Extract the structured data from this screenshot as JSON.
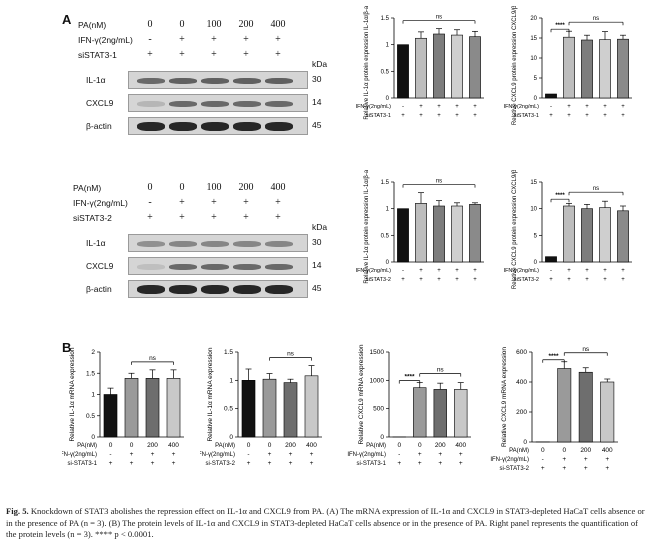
{
  "panel_a_letter": "A",
  "panel_b_letter": "B",
  "blots": [
    {
      "conditions": [
        {
          "label": "PA(nM)",
          "values": [
            "0",
            "0",
            "100",
            "200",
            "400"
          ]
        },
        {
          "label": "IFN-γ(2ng/mL)",
          "values": [
            "-",
            "+",
            "+",
            "+",
            "+"
          ]
        },
        {
          "label": "siSTAT3-1",
          "values": [
            "+",
            "+",
            "+",
            "+",
            "+"
          ]
        }
      ],
      "kda_label": "kDa",
      "bands": [
        {
          "name": "IL-1α",
          "kda": "30",
          "intensity": [
            0.55,
            0.6,
            0.6,
            0.6,
            0.6
          ]
        },
        {
          "name": "CXCL9",
          "kda": "14",
          "intensity": [
            0.15,
            0.55,
            0.55,
            0.55,
            0.55
          ]
        },
        {
          "name": "β-actin",
          "kda": "45",
          "intensity": [
            0.9,
            0.9,
            0.9,
            0.9,
            0.9
          ]
        }
      ]
    },
    {
      "conditions": [
        {
          "label": "PA(nM)",
          "values": [
            "0",
            "0",
            "100",
            "200",
            "400"
          ]
        },
        {
          "label": "IFN-γ(2ng/mL)",
          "values": [
            "-",
            "+",
            "+",
            "+",
            "+"
          ]
        },
        {
          "label": "siSTAT3-2",
          "values": [
            "+",
            "+",
            "+",
            "+",
            "+"
          ]
        }
      ],
      "kda_label": "kDa",
      "bands": [
        {
          "name": "IL-1α",
          "kda": "30",
          "intensity": [
            0.35,
            0.4,
            0.4,
            0.4,
            0.4
          ]
        },
        {
          "name": "CXCL9",
          "kda": "14",
          "intensity": [
            0.1,
            0.55,
            0.55,
            0.55,
            0.55
          ]
        },
        {
          "name": "β-actin",
          "kda": "45",
          "intensity": [
            0.9,
            0.9,
            0.9,
            0.9,
            0.9
          ]
        }
      ]
    }
  ],
  "chart_data": [
    {
      "id": "a1",
      "type": "bar",
      "ylabel": "Relative IL-1α protein expression IL-1α/β-actin",
      "ylim": [
        0,
        1.5
      ],
      "yticks": [
        0.0,
        0.5,
        1.0,
        1.5
      ],
      "values": [
        1.0,
        1.12,
        1.2,
        1.18,
        1.15
      ],
      "errors": [
        0,
        0.12,
        0.1,
        0.1,
        0.1
      ],
      "colors": [
        "#111111",
        "#bdbdbd",
        "#7d7d7d",
        "#cfcfcf",
        "#8a8a8a"
      ],
      "condition_rows": [
        {
          "label": "IFN-γ(2ng/mL)",
          "values": [
            "-",
            "+",
            "+",
            "+",
            "+"
          ]
        },
        {
          "label": "siSTAT3-1",
          "values": [
            "+",
            "+",
            "+",
            "+",
            "+"
          ]
        }
      ],
      "annotations": [
        {
          "from": 0,
          "to": 4,
          "text": "ns"
        }
      ]
    },
    {
      "id": "a2",
      "type": "bar",
      "ylabel": "Relative CXCL9 protein expression CXCL9/β-actin",
      "ylim": [
        0,
        20
      ],
      "yticks": [
        0,
        5,
        10,
        15,
        20
      ],
      "values": [
        1.0,
        15.2,
        14.5,
        14.6,
        14.7
      ],
      "errors": [
        0,
        1.5,
        1.2,
        2.0,
        1.0
      ],
      "colors": [
        "#111111",
        "#bdbdbd",
        "#7d7d7d",
        "#cfcfcf",
        "#8a8a8a"
      ],
      "condition_rows": [
        {
          "label": "IFN-γ(2ng/mL)",
          "values": [
            "-",
            "+",
            "+",
            "+",
            "+"
          ]
        },
        {
          "label": "siSTAT3-1",
          "values": [
            "+",
            "+",
            "+",
            "+",
            "+"
          ]
        }
      ],
      "annotations": [
        {
          "from": 0,
          "to": 1,
          "text": "****"
        },
        {
          "from": 1,
          "to": 4,
          "text": "ns"
        }
      ]
    },
    {
      "id": "a3",
      "type": "bar",
      "ylabel": "Relative IL-1α protein expression IL-1α/β-actin",
      "ylim": [
        0,
        1.5
      ],
      "yticks": [
        0.0,
        0.5,
        1.0,
        1.5
      ],
      "values": [
        1.0,
        1.1,
        1.05,
        1.05,
        1.08
      ],
      "errors": [
        0,
        0.2,
        0.1,
        0.06,
        0.03
      ],
      "colors": [
        "#111111",
        "#bdbdbd",
        "#7d7d7d",
        "#cfcfcf",
        "#8a8a8a"
      ],
      "condition_rows": [
        {
          "label": "IFN-γ(2ng/mL)",
          "values": [
            "-",
            "+",
            "+",
            "+",
            "+"
          ]
        },
        {
          "label": "siSTAT3-2",
          "values": [
            "+",
            "+",
            "+",
            "+",
            "+"
          ]
        }
      ],
      "annotations": [
        {
          "from": 0,
          "to": 4,
          "text": "ns"
        }
      ]
    },
    {
      "id": "a4",
      "type": "bar",
      "ylabel": "Relative CXCL9 protein expression CXCL9/β-actin",
      "ylim": [
        0,
        15
      ],
      "yticks": [
        0,
        5,
        10,
        15
      ],
      "values": [
        1.0,
        10.5,
        10.0,
        10.2,
        9.6
      ],
      "errors": [
        0,
        0.5,
        0.8,
        1.2,
        0.9
      ],
      "colors": [
        "#111111",
        "#bdbdbd",
        "#7d7d7d",
        "#cfcfcf",
        "#8a8a8a"
      ],
      "condition_rows": [
        {
          "label": "IFN-γ(2ng/mL)",
          "values": [
            "-",
            "+",
            "+",
            "+",
            "+"
          ]
        },
        {
          "label": "siSTAT3-2",
          "values": [
            "+",
            "+",
            "+",
            "+",
            "+"
          ]
        }
      ],
      "annotations": [
        {
          "from": 0,
          "to": 1,
          "text": "****"
        },
        {
          "from": 1,
          "to": 4,
          "text": "ns"
        }
      ]
    },
    {
      "id": "b1",
      "type": "bar",
      "ylabel": "Relative IL-1α mRNA expression",
      "ylim": [
        0,
        2.0
      ],
      "yticks": [
        0.0,
        0.5,
        1.0,
        1.5,
        2.0
      ],
      "values": [
        1.0,
        1.38,
        1.38,
        1.38
      ],
      "errors": [
        0.15,
        0.12,
        0.2,
        0.2
      ],
      "colors": [
        "#111111",
        "#9a9a9a",
        "#6e6e6e",
        "#c8c8c8"
      ],
      "condition_rows": [
        {
          "label": "PA(nM)",
          "values": [
            "0",
            "0",
            "200",
            "400"
          ]
        },
        {
          "label": "IFN-γ(2ng/mL)",
          "values": [
            "-",
            "+",
            "+",
            "+"
          ]
        },
        {
          "label": "si-STAT3-1",
          "values": [
            "+",
            "+",
            "+",
            "+"
          ]
        }
      ],
      "annotations": [
        {
          "from": 1,
          "to": 3,
          "text": "ns"
        }
      ]
    },
    {
      "id": "b2",
      "type": "bar",
      "ylabel": "Relative IL-1α mRNA expression",
      "ylim": [
        0,
        1.5
      ],
      "yticks": [
        0.0,
        0.5,
        1.0,
        1.5
      ],
      "values": [
        1.0,
        1.02,
        0.96,
        1.08
      ],
      "errors": [
        0.2,
        0.1,
        0.06,
        0.18
      ],
      "colors": [
        "#111111",
        "#9a9a9a",
        "#6e6e6e",
        "#c8c8c8"
      ],
      "condition_rows": [
        {
          "label": "PA(nM)",
          "values": [
            "0",
            "0",
            "200",
            "400"
          ]
        },
        {
          "label": "IFN-γ(2ng/mL)",
          "values": [
            "-",
            "+",
            "+",
            "+"
          ]
        },
        {
          "label": "si-STAT3-2",
          "values": [
            "+",
            "+",
            "+",
            "+"
          ]
        }
      ],
      "annotations": [
        {
          "from": 1,
          "to": 3,
          "text": "ns"
        }
      ]
    },
    {
      "id": "b3",
      "type": "bar",
      "ylabel": "Relative CXCL9 mRNA expression",
      "ylim": [
        0,
        1500
      ],
      "yticks": [
        0,
        500,
        1000,
        1500
      ],
      "values": [
        1,
        870,
        840,
        840
      ],
      "errors": [
        0,
        90,
        110,
        120
      ],
      "colors": [
        "#111111",
        "#9a9a9a",
        "#6e6e6e",
        "#c8c8c8"
      ],
      "condition_rows": [
        {
          "label": "PA(nM)",
          "values": [
            "0",
            "0",
            "200",
            "400"
          ]
        },
        {
          "label": "IFN-γ(2ng/mL)",
          "values": [
            "-",
            "+",
            "+",
            "+"
          ]
        },
        {
          "label": "si-STAT3-1",
          "values": [
            "+",
            "+",
            "+",
            "+"
          ]
        }
      ],
      "annotations": [
        {
          "from": 0,
          "to": 1,
          "text": "****"
        },
        {
          "from": 1,
          "to": 3,
          "text": "ns"
        }
      ]
    },
    {
      "id": "b4",
      "type": "bar",
      "ylabel": "Relative CXCL9 mRNA expression",
      "ylim": [
        0,
        600
      ],
      "yticks": [
        0,
        200,
        400,
        600
      ],
      "values": [
        1,
        490,
        465,
        400
      ],
      "errors": [
        0,
        45,
        30,
        20
      ],
      "colors": [
        "#111111",
        "#9a9a9a",
        "#6e6e6e",
        "#c8c8c8"
      ],
      "condition_rows": [
        {
          "label": "PA(nM)",
          "values": [
            "0",
            "0",
            "200",
            "400"
          ]
        },
        {
          "label": "IFN-γ(2ng/mL)",
          "values": [
            "-",
            "+",
            "+",
            "+"
          ]
        },
        {
          "label": "si-STAT3-2",
          "values": [
            "+",
            "+",
            "+",
            "+"
          ]
        }
      ],
      "annotations": [
        {
          "from": 0,
          "to": 1,
          "text": "****"
        },
        {
          "from": 1,
          "to": 3,
          "text": "ns"
        }
      ]
    }
  ],
  "caption": {
    "lead": "Fig. 5.",
    "text": "Knockdown of STAT3 abolishes the repression effect on IL-1α and CXCL9 from PA. (A) The mRNA expression of IL-1α and CXCL9 in STAT3-depleted HaCaT cells absence or in the presence of PA (n = 3). (B) The protein levels of IL-1α and CXCL9 in STAT3-depleted HaCaT cells absence or in the presence of PA. Right panel represents the quantification of the protein levels (n = 3). **** p < 0.0001."
  }
}
